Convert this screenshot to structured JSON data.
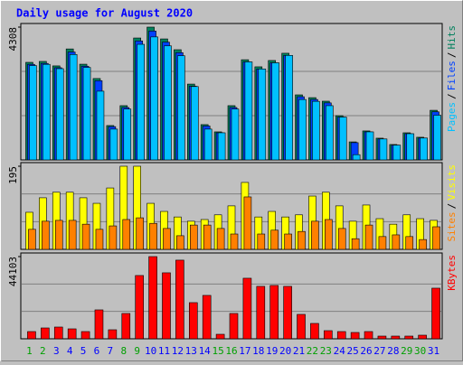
{
  "chart_data": {
    "type": "webalizer-daily",
    "title": "Daily usage for August 2020",
    "separator": "/",
    "categories": [
      "1",
      "2",
      "3",
      "4",
      "5",
      "6",
      "7",
      "8",
      "9",
      "10",
      "11",
      "12",
      "13",
      "14",
      "15",
      "16",
      "17",
      "18",
      "19",
      "20",
      "21",
      "22",
      "23",
      "24",
      "25",
      "26",
      "27",
      "28",
      "29",
      "30",
      "31"
    ],
    "weekend": [
      "1",
      "2",
      "8",
      "9",
      "15",
      "16",
      "22",
      "23",
      "29",
      "30"
    ],
    "weekday_color": "#0000ff",
    "weekend_color": "#00a000",
    "panels": [
      {
        "ylim": [
          0,
          4308
        ],
        "yticks": [
          4308
        ],
        "series": [
          {
            "name": "Hits",
            "color": "#00805c",
            "values": [
              3165,
              3195,
              3050,
              3600,
              3105,
              2640,
              1115,
              1760,
              3955,
              4308,
              3925,
              3575,
              2460,
              1145,
              910,
              1760,
              3250,
              3020,
              3225,
              3460,
              2110,
              2020,
              1905,
              1435,
              585,
              940,
              705,
              500,
              880,
              735,
              1610
            ]
          },
          {
            "name": "Files",
            "color": "#0040ff",
            "values": [
              3100,
              3130,
              2990,
              3500,
              3040,
              2570,
              1080,
              1700,
              3860,
              4180,
              3820,
              3480,
              2390,
              1100,
              880,
              1700,
              3180,
              2950,
              3150,
              3390,
              2050,
              1960,
              1850,
              1390,
              560,
              910,
              680,
              480,
              850,
              710,
              1560
            ]
          },
          {
            "name": "Pages",
            "color": "#00c0ff",
            "values": [
              3060,
              3100,
              2960,
              3420,
              3000,
              2230,
              1000,
              1650,
              3750,
              3990,
              3700,
              3380,
              2380,
              1000,
              880,
              1650,
              3180,
              2950,
              3150,
              3390,
              1960,
              1900,
              1760,
              1390,
              170,
              910,
              680,
              480,
              850,
              710,
              1450
            ]
          }
        ]
      },
      {
        "ylim": [
          0,
          195
        ],
        "yticks": [
          195
        ],
        "series": [
          {
            "name": "Visits",
            "color": "#ffff00",
            "values": [
              87,
              121,
              134,
              134,
              121,
              108,
              144,
              195,
              195,
              108,
              89,
              76,
              66,
              70,
              81,
              102,
              157,
              76,
              89,
              76,
              81,
              125,
              134,
              102,
              66,
              104,
              72,
              59,
              81,
              72,
              68
            ]
          },
          {
            "name": "Sites",
            "color": "#ff8000",
            "values": [
              47,
              66,
              68,
              68,
              59,
              47,
              55,
              70,
              74,
              61,
              49,
              32,
              57,
              57,
              49,
              36,
              123,
              36,
              45,
              36,
              42,
              66,
              70,
              49,
              25,
              57,
              30,
              34,
              30,
              23,
              53
            ]
          }
        ]
      },
      {
        "ylim": [
          0,
          44103
        ],
        "yticks": [
          44103
        ],
        "series": [
          {
            "name": "KBytes",
            "color": "#ff0000",
            "values": [
              3880,
              5820,
              6305,
              5335,
              3880,
              15520,
              4850,
              13580,
              33950,
              44103,
              35405,
              42195,
              19400,
              23280,
              2425,
              13580,
              32495,
              28130,
              28615,
              28130,
              13095,
              8245,
              4365,
              3880,
              3395,
              3880,
              1455,
              1455,
              1455,
              1940,
              27160
            ]
          }
        ]
      }
    ]
  }
}
